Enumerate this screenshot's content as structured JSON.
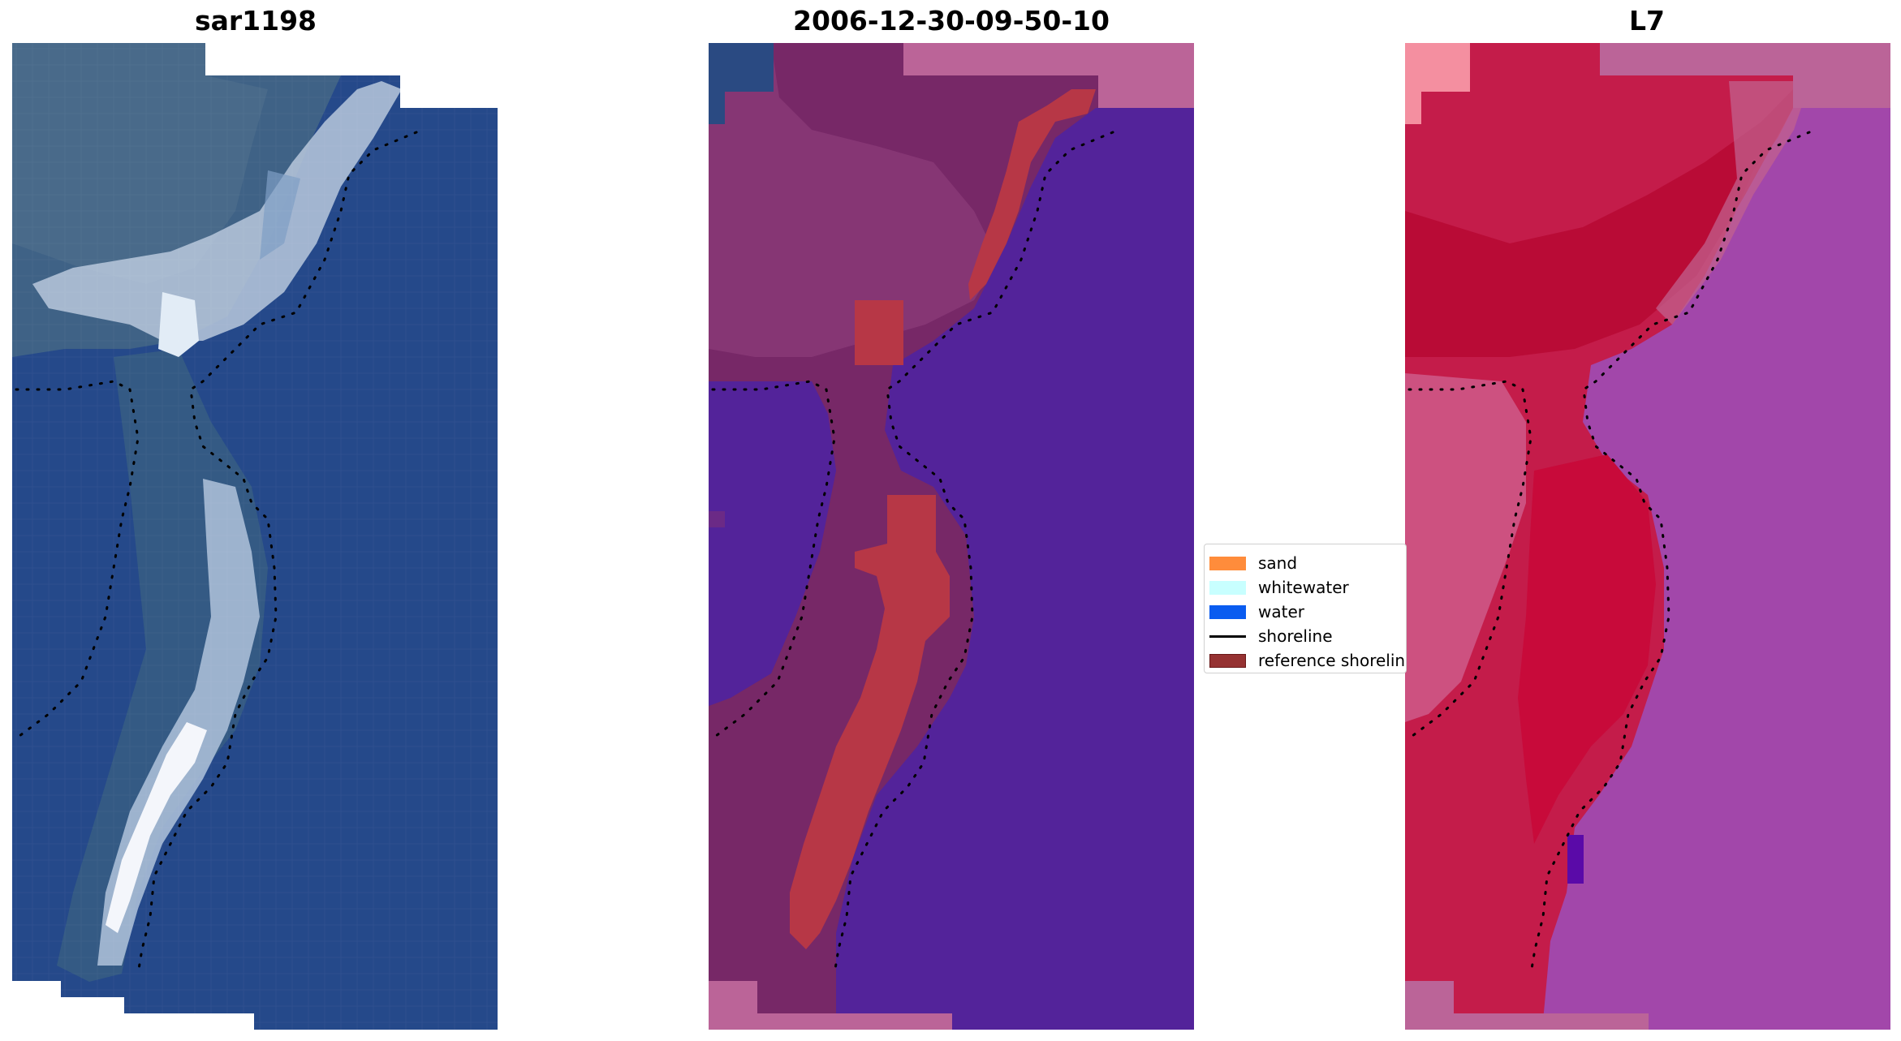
{
  "panels": [
    {
      "title": "sar1198"
    },
    {
      "title": "2006-12-30-09-50-10"
    },
    {
      "title": "L7"
    }
  ],
  "legend": {
    "items": [
      {
        "label": "sand",
        "kind": "patch",
        "color": "#ff8c3b"
      },
      {
        "label": "whitewater",
        "kind": "patch",
        "color": "#c8ffff"
      },
      {
        "label": "water",
        "kind": "patch",
        "color": "#0a5cf0"
      },
      {
        "label": "shoreline",
        "kind": "line",
        "color": "#000000"
      },
      {
        "label": "reference shoreline",
        "kind": "patch",
        "color": "#963232"
      }
    ]
  },
  "colors": {
    "rgb_water": "#234a8c",
    "rgb_whitewater": "#e8f0ff",
    "rgb_sand": "#8fa8c8",
    "class_water": "#54239a",
    "class_land": "#7a2a6a",
    "class_sand": "#ba3848",
    "class_nodata": "#bb6498",
    "ndwi_land": "#c8103c",
    "ndwi_water": "#a64aae",
    "ndwi_nodata": "#bb6498"
  }
}
